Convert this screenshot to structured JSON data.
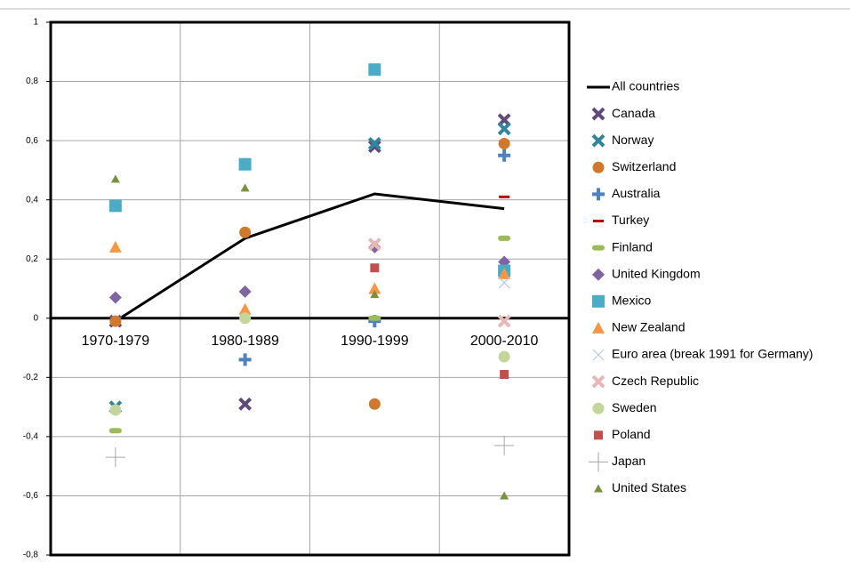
{
  "chart_data": {
    "type": "line",
    "categories": [
      "1970-1979",
      "1980-1989",
      "1990-1999",
      "2000-2010"
    ],
    "ylim": [
      -0.8,
      1
    ],
    "yticks": [
      {
        "value": -0.8,
        "label": "-0,8"
      },
      {
        "value": -0.6,
        "label": "-0,6"
      },
      {
        "value": -0.4,
        "label": "-0,4"
      },
      {
        "value": -0.2,
        "label": "-0,2"
      },
      0,
      {
        "value": 0.2,
        "label": "0,2"
      },
      {
        "value": 0.4,
        "label": "0,4"
      },
      {
        "value": 0.6,
        "label": "0,6"
      },
      {
        "value": 0.8,
        "label": "0,8"
      },
      1
    ],
    "grid": true,
    "legend": "right",
    "series": [
      {
        "name": "All countries",
        "color": "#000000",
        "marker": "line",
        "values": [
          -0.01,
          0.27,
          0.42,
          0.37
        ]
      },
      {
        "name": "Canada",
        "color": "#604a7b",
        "marker": "x",
        "values": [
          -0.01,
          -0.29,
          0.58,
          0.67
        ]
      },
      {
        "name": "Norway",
        "color": "#31859c",
        "marker": "x",
        "values": [
          -0.3,
          null,
          0.59,
          0.64
        ]
      },
      {
        "name": "Switzerland",
        "color": "#d0782e",
        "marker": "circle",
        "values": [
          -0.01,
          0.29,
          -0.29,
          0.59
        ]
      },
      {
        "name": "Australia",
        "color": "#4f81bd",
        "marker": "plus",
        "values": [
          null,
          -0.14,
          -0.01,
          0.55
        ]
      },
      {
        "name": "Turkey",
        "color": "#c00000",
        "marker": "dash-thin",
        "values": [
          null,
          null,
          null,
          0.41
        ]
      },
      {
        "name": "Finland",
        "color": "#9bbb59",
        "marker": "dash",
        "values": [
          -0.38,
          null,
          0.0,
          0.27
        ]
      },
      {
        "name": "United Kingdom",
        "color": "#8064a2",
        "marker": "diamond",
        "values": [
          0.07,
          0.09,
          0.24,
          0.19
        ]
      },
      {
        "name": "Mexico",
        "color": "#4bacc6",
        "marker": "square",
        "values": [
          0.38,
          0.52,
          0.84,
          0.16
        ]
      },
      {
        "name": "New Zealand",
        "color": "#f79646",
        "marker": "triangle",
        "values": [
          0.24,
          0.03,
          0.1,
          0.15
        ]
      },
      {
        "name": "Euro area (break 1991 for Germany)",
        "color": "#b9c7e0",
        "marker": "x-thin",
        "values": [
          null,
          null,
          null,
          0.12
        ]
      },
      {
        "name": "Czech Republic",
        "color": "#e6b9b8",
        "marker": "x",
        "values": [
          null,
          null,
          0.25,
          -0.01
        ]
      },
      {
        "name": "Sweden",
        "color": "#c3d69b",
        "marker": "circle",
        "values": [
          -0.31,
          0.0,
          null,
          -0.13
        ]
      },
      {
        "name": "Poland",
        "color": "#c0504d",
        "marker": "square-small",
        "values": [
          null,
          null,
          0.17,
          -0.19
        ]
      },
      {
        "name": "Japan",
        "color": "#a6a6a6",
        "marker": "plus-thin",
        "values": [
          -0.47,
          null,
          null,
          -0.43
        ]
      },
      {
        "name": "United States",
        "color": "#77933c",
        "marker": "triangle-small",
        "values": [
          0.47,
          0.44,
          0.08,
          -0.6
        ]
      }
    ]
  }
}
